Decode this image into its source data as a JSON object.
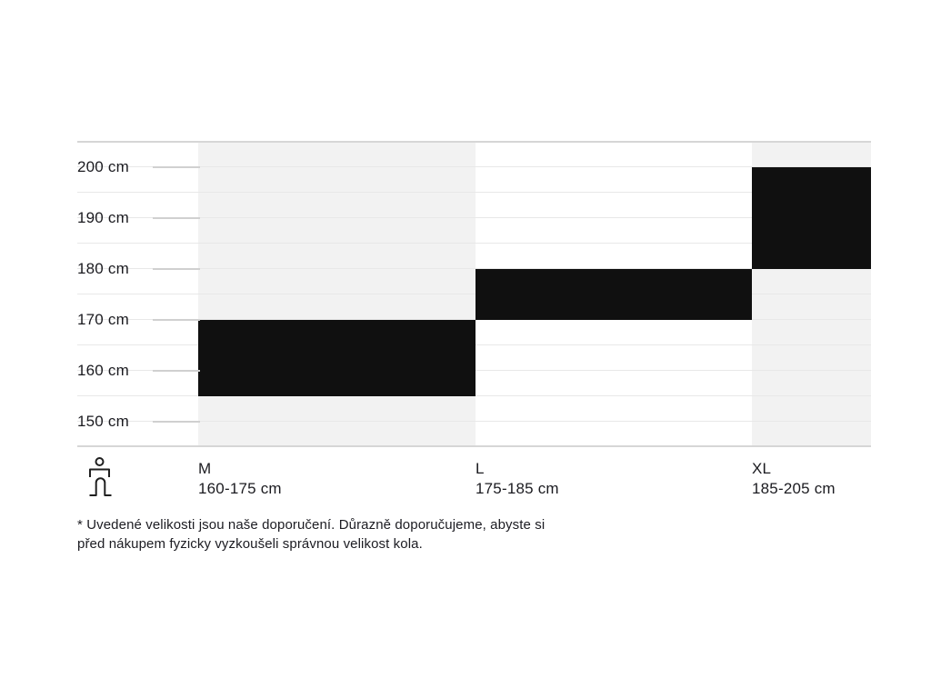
{
  "chart_data": {
    "type": "bar",
    "subtype": "vertical-range-bars",
    "title": "",
    "yticks": [
      "200 cm",
      "190 cm",
      "180 cm",
      "170 cm",
      "160 cm",
      "150 cm"
    ],
    "ylim": [
      145,
      205
    ],
    "grid": true,
    "grid_step_cm": 5,
    "categories": [
      "M",
      "L",
      "XL"
    ],
    "series": [
      {
        "name": "M",
        "range_label": "160-175 cm",
        "min_cm": 160,
        "max_cm": 175
      },
      {
        "name": "L",
        "range_label": "175-185 cm",
        "min_cm": 175,
        "max_cm": 185
      },
      {
        "name": "XL",
        "range_label": "185-205 cm",
        "min_cm": 185,
        "max_cm": 205
      }
    ],
    "shaded_columns": [
      true,
      false,
      true
    ],
    "legend_position": "bottom"
  },
  "legend": {
    "icon": "person-icon"
  },
  "footnote": {
    "line1": "* Uvedené velikosti jsou naše doporučení. Důrazně doporučujeme, abyste si",
    "line2": "před nákupem fyzicky vyzkoušeli správnou velikost kola."
  },
  "colors": {
    "bar": "#101010",
    "column_shade": "#f2f2f2",
    "gridline": "#e8e8e8",
    "axis_edge_line": "#d6d6d6",
    "tick": "#d0d0d0",
    "text": "#1b1b20",
    "background": "#ffffff"
  }
}
